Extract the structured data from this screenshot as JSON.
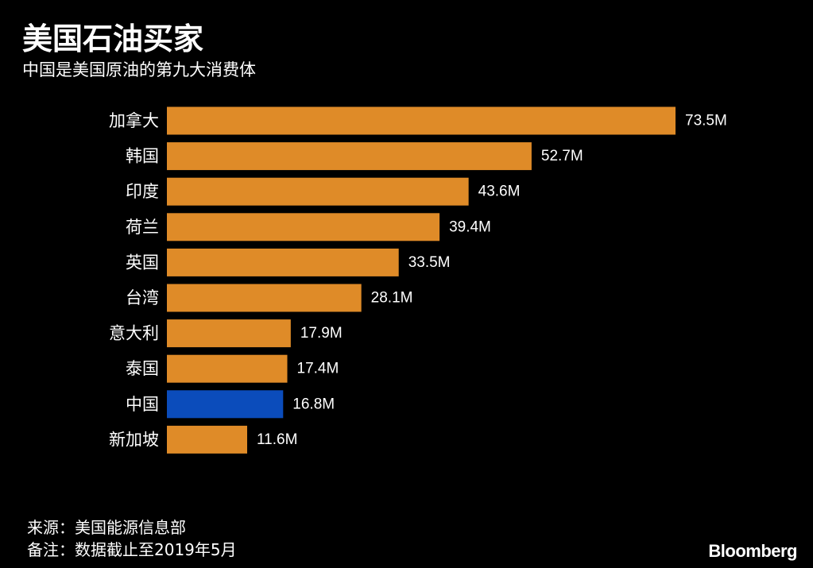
{
  "title": "美国石油买家",
  "subtitle": "中国是美国原油的第九大消费体",
  "footer": {
    "source": "来源：美国能源信息部",
    "note": "备注：数据截止至2019年5月"
  },
  "brand": "Bloomberg",
  "colors": {
    "bar": "#df8b28",
    "highlight": "#0b4cbb",
    "background": "#000000",
    "text": "#ffffff"
  },
  "chart_data": {
    "type": "bar",
    "orientation": "horizontal",
    "categories": [
      "加拿大",
      "韩国",
      "印度",
      "荷兰",
      "英国",
      "台湾",
      "意大利",
      "泰国",
      "中国",
      "新加坡"
    ],
    "values": [
      73.5,
      52.7,
      43.6,
      39.4,
      33.5,
      28.1,
      17.9,
      17.4,
      16.8,
      11.6
    ],
    "labels": [
      "73.5M",
      "52.7M",
      "43.6M",
      "39.4M",
      "33.5M",
      "28.1M",
      "17.9M",
      "17.4M",
      "16.8M",
      "11.6M"
    ],
    "highlight": "中国",
    "xlim": [
      0,
      73.5
    ],
    "grid": false,
    "legend": "none"
  }
}
